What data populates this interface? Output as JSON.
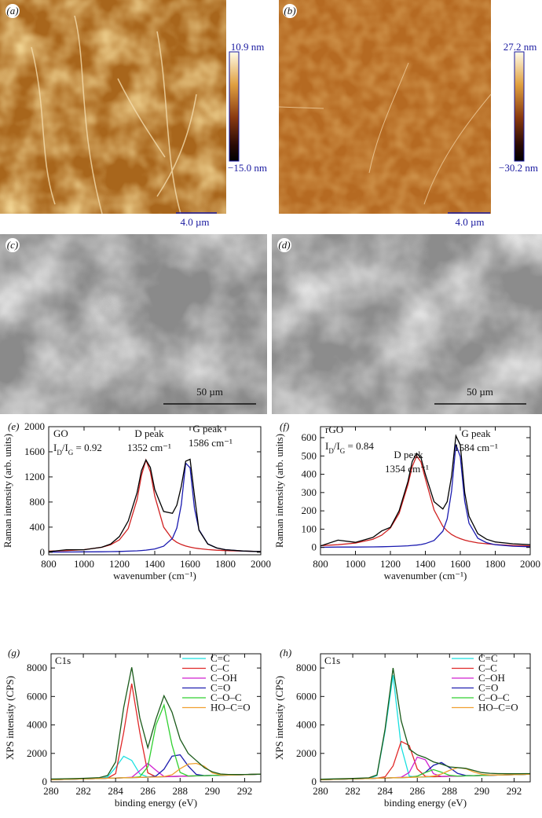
{
  "image_panels": [
    {
      "label": "(a)",
      "scale_bar": "4.0 µm",
      "colorbar": {
        "max_label": "10.9 nm",
        "min_label": "−15.0 nm"
      }
    },
    {
      "label": "(b)",
      "scale_bar": "4.0 µm",
      "colorbar": {
        "max_label": "27.2 nm",
        "min_label": "−30.2 nm"
      }
    },
    {
      "label": "(c)",
      "scale_bar": "50 µm"
    },
    {
      "label": "(d)",
      "scale_bar": "50 µm"
    }
  ],
  "chart_data": [
    {
      "type": "line",
      "panel_label": "(e)",
      "xlabel": "wavenumber (cm⁻¹)",
      "ylabel": "Raman intensity (arb. units)",
      "annotations": [
        "GO",
        "D peak",
        "1352 cm⁻¹",
        "G peak",
        "1586 cm⁻¹"
      ],
      "ratio": {
        "parts": [
          "I",
          "D",
          "/I",
          "G",
          " = 0.92"
        ],
        "subscript": [
          false,
          true,
          false,
          true,
          false
        ]
      },
      "xlim": [
        800,
        2000
      ],
      "xticks": [
        800,
        1000,
        1200,
        1400,
        1600,
        1800,
        2000
      ],
      "ylim": [
        -40,
        2000
      ],
      "yticks": [
        0,
        400,
        800,
        1200,
        1600,
        2000
      ],
      "x": [
        800,
        900,
        1000,
        1100,
        1150,
        1200,
        1250,
        1300,
        1325,
        1350,
        1375,
        1400,
        1450,
        1500,
        1525,
        1550,
        1575,
        1600,
        1625,
        1650,
        1700,
        1750,
        1800,
        1900,
        2000
      ],
      "series": [
        {
          "color": "#d02020",
          "values": [
            17,
            26,
            41,
            79,
            119,
            198,
            378,
            840,
            1225,
            1470,
            1282,
            896,
            401,
            208,
            158,
            124,
            99,
            81,
            68,
            57,
            42,
            33,
            26,
            17,
            12
          ]
        },
        {
          "color": "#1a1ab0",
          "values": [
            3,
            4,
            6,
            8,
            10,
            13,
            17,
            23,
            28,
            34,
            42,
            53,
            97,
            222,
            386,
            757,
            1420,
            1345,
            696,
            359,
            134,
            68,
            41,
            19,
            11
          ]
        },
        {
          "color": "#000000",
          "values": [
            10,
            40,
            40,
            80,
            130,
            250,
            500,
            950,
            1300,
            1470,
            1350,
            1000,
            650,
            620,
            750,
            1050,
            1450,
            1480,
            900,
            350,
            130,
            70,
            40,
            20,
            10
          ]
        }
      ]
    },
    {
      "type": "line",
      "panel_label": "(f)",
      "xlabel": "wavenumber (cm⁻¹)",
      "ylabel": "Raman intensity (arb. units)",
      "annotations": [
        "rGO",
        "D peak",
        "1354 cm⁻¹",
        "G peak",
        "1584 cm⁻¹"
      ],
      "ratio": {
        "parts": [
          "I",
          "D",
          "/I",
          "G",
          " = 0.84"
        ],
        "subscript": [
          false,
          true,
          false,
          true,
          false
        ]
      },
      "xlim": [
        800,
        2000
      ],
      "xticks": [
        800,
        1000,
        1200,
        1400,
        1600,
        1800,
        2000
      ],
      "ylim": [
        -40,
        660
      ],
      "yticks": [
        0,
        100,
        200,
        300,
        400,
        500,
        600
      ],
      "x": [
        800,
        900,
        1000,
        1100,
        1150,
        1200,
        1250,
        1300,
        1325,
        1350,
        1375,
        1400,
        1450,
        1500,
        1525,
        1550,
        1575,
        1600,
        1625,
        1650,
        1700,
        1750,
        1800,
        1900,
        2000
      ],
      "series": [
        {
          "color": "#d02020",
          "values": [
            10,
            15,
            24,
            45,
            67,
            106,
            186,
            343,
            442,
            500,
            467,
            376,
            205,
            115,
            90,
            71,
            58,
            48,
            40,
            34,
            25,
            20,
            16,
            11,
            8
          ]
        },
        {
          "color": "#1a1ab0",
          "values": [
            1,
            2,
            2,
            3,
            4,
            5,
            7,
            9,
            11,
            13,
            16,
            21,
            38,
            89,
            156,
            309,
            563,
            496,
            253,
            132,
            50,
            26,
            15,
            7,
            4
          ]
        },
        {
          "color": "#000000",
          "values": [
            8,
            40,
            28,
            55,
            90,
            110,
            200,
            360,
            470,
            515,
            490,
            400,
            250,
            210,
            250,
            390,
            610,
            560,
            300,
            170,
            75,
            45,
            30,
            20,
            15
          ]
        }
      ]
    },
    {
      "type": "line",
      "panel_label": "(g)",
      "xlabel": "binding energy (eV)",
      "ylabel": "XPS intensity (CPS)",
      "annotations": [
        "C1s"
      ],
      "legend": "upper right",
      "xlim": [
        280,
        293
      ],
      "xticks": [
        280,
        282,
        284,
        286,
        288,
        290,
        292
      ],
      "ylim": [
        0,
        9000
      ],
      "yticks": [
        0,
        2000,
        4000,
        6000,
        8000
      ],
      "x": [
        280,
        281,
        282,
        283,
        283.5,
        284,
        284.5,
        285,
        285.5,
        286,
        286.5,
        287,
        287.5,
        288,
        288.5,
        289,
        289.5,
        290,
        290.5,
        291,
        292,
        293
      ],
      "series": [
        {
          "name": "C=C",
          "color": "#19e0e0",
          "values": [
            150,
            180,
            210,
            243,
            345,
            1008,
            1800,
            1510,
            558,
            344,
            345,
            360,
            375,
            390,
            405,
            420,
            435,
            450,
            465,
            480,
            510,
            540
          ]
        },
        {
          "name": "C–C",
          "color": "#e02828",
          "values": [
            150,
            180,
            210,
            240,
            261,
            574,
            3445,
            6900,
            3475,
            634,
            351,
            360,
            375,
            390,
            405,
            420,
            435,
            450,
            465,
            480,
            510,
            540
          ]
        },
        {
          "name": "C–OH",
          "color": "#d020d0",
          "values": [
            150,
            180,
            210,
            240,
            255,
            270,
            285,
            322,
            783,
            1300,
            813,
            382,
            375,
            390,
            405,
            420,
            435,
            450,
            465,
            480,
            510,
            540
          ]
        },
        {
          "name": "C=O",
          "color": "#2020b0",
          "values": [
            150,
            180,
            210,
            240,
            255,
            270,
            285,
            300,
            315,
            333,
            410,
            888,
            1800,
            1900,
            1118,
            526,
            441,
            450,
            465,
            480,
            510,
            540
          ]
        },
        {
          "name": "C–O–C",
          "color": "#30d030",
          "values": [
            150,
            180,
            210,
            240,
            255,
            270,
            285,
            300,
            358,
            1060,
            3985,
            5400,
            2590,
            660,
            415,
            420,
            435,
            450,
            465,
            480,
            510,
            540
          ]
        },
        {
          "name": "HO–C=O",
          "color": "#f0a030",
          "values": [
            150,
            180,
            210,
            240,
            255,
            270,
            285,
            300,
            315,
            330,
            345,
            374,
            499,
            923,
            1250,
            1300,
            1093,
            626,
            489,
            480,
            510,
            540
          ]
        },
        {
          "color": "#1a5a1a",
          "values": [
            200,
            220,
            250,
            300,
            450,
            1400,
            5200,
            8050,
            4500,
            2400,
            4400,
            6050,
            4900,
            3000,
            2000,
            1500,
            1000,
            700,
            550,
            520,
            520,
            540
          ]
        }
      ]
    },
    {
      "type": "line",
      "panel_label": "(h)",
      "xlabel": "binding energy (eV)",
      "ylabel": "XPS intensity (CPS)",
      "annotations": [
        "C1s"
      ],
      "legend": "upper right",
      "xlim": [
        280,
        293
      ],
      "xticks": [
        280,
        282,
        284,
        286,
        288,
        290,
        292
      ],
      "ylim": [
        0,
        9000
      ],
      "yticks": [
        0,
        2000,
        4000,
        6000,
        8000
      ],
      "x": [
        280,
        281,
        282,
        283,
        283.5,
        284,
        284.5,
        285,
        285.5,
        286,
        286.5,
        287,
        287.5,
        288,
        288.5,
        289,
        289.5,
        290,
        290.5,
        291,
        292,
        293
      ],
      "series": [
        {
          "name": "C=C",
          "color": "#19e0e0",
          "values": [
            150,
            180,
            210,
            240,
            444,
            3546,
            7500,
            2483,
            398,
            330,
            345,
            360,
            375,
            390,
            405,
            420,
            435,
            450,
            465,
            480,
            510,
            540
          ]
        },
        {
          "name": "C–C",
          "color": "#e02828",
          "values": [
            150,
            180,
            210,
            240,
            257,
            349,
            1119,
            2837,
            2555,
            907,
            388,
            360,
            375,
            390,
            405,
            420,
            435,
            450,
            465,
            480,
            510,
            540
          ]
        },
        {
          "name": "C–OH",
          "color": "#d020d0",
          "values": [
            150,
            180,
            210,
            240,
            255,
            270,
            285,
            318,
            661,
            1740,
            1553,
            576,
            383,
            390,
            405,
            420,
            435,
            450,
            465,
            480,
            510,
            540
          ]
        },
        {
          "name": "C=O",
          "color": "#2020b0",
          "values": [
            150,
            180,
            210,
            240,
            255,
            270,
            285,
            300,
            322,
            396,
            670,
            1160,
            1361,
            997,
            591,
            448,
            435,
            450,
            465,
            480,
            510,
            540
          ]
        },
        {
          "name": "C–O–C",
          "color": "#30d030",
          "values": [
            150,
            180,
            210,
            240,
            255,
            270,
            285,
            300,
            315,
            398,
            650,
            860,
            680,
            458,
            410,
            420,
            435,
            450,
            465,
            480,
            510,
            540
          ]
        },
        {
          "name": "HO–C=O",
          "color": "#f0a030",
          "values": [
            150,
            180,
            210,
            240,
            255,
            270,
            285,
            300,
            315,
            330,
            352,
            404,
            550,
            806,
            999,
            930,
            698,
            531,
            480,
            480,
            510,
            540
          ]
        },
        {
          "color": "#1a5a1a",
          "values": [
            180,
            210,
            240,
            280,
            480,
            3700,
            8000,
            4300,
            2300,
            1900,
            1700,
            1400,
            1250,
            1050,
            1000,
            950,
            800,
            650,
            600,
            580,
            570,
            580
          ]
        }
      ]
    }
  ]
}
